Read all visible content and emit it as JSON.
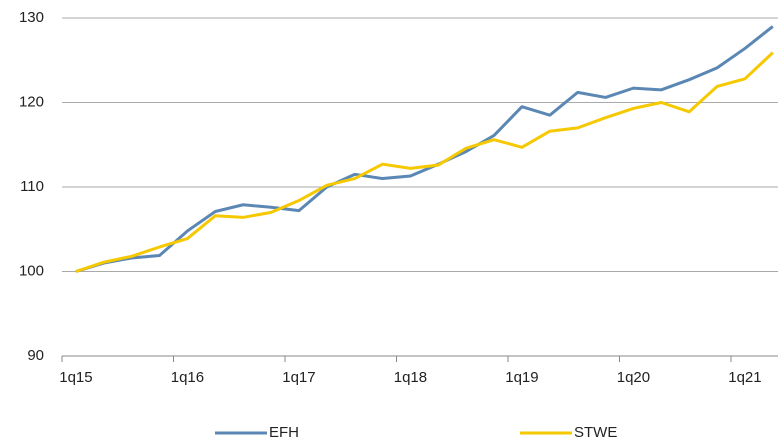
{
  "chart_data": {
    "type": "line",
    "categories": [
      "1q15",
      null,
      null,
      null,
      "1q16",
      null,
      null,
      null,
      "1q17",
      null,
      null,
      null,
      "1q18",
      null,
      null,
      null,
      "1q19",
      null,
      null,
      null,
      "1q20",
      null,
      null,
      null,
      "1q21",
      null
    ],
    "series": [
      {
        "name": "EFH",
        "color": "#5b87b4",
        "values": [
          100,
          101,
          101.6,
          101.9,
          104.8,
          107.1,
          107.9,
          107.6,
          107.2,
          110.0,
          111.5,
          111.0,
          111.3,
          112.7,
          114.2,
          116.1,
          119.5,
          118.5,
          121.2,
          120.6,
          121.7,
          121.5,
          122.7,
          124.1,
          126.4,
          129.0
        ]
      },
      {
        "name": "STWE",
        "color": "#f5c800",
        "values": [
          100,
          101.1,
          101.8,
          102.9,
          103.9,
          106.6,
          106.4,
          107.0,
          108.4,
          110.2,
          111.0,
          112.7,
          112.2,
          112.6,
          114.6,
          115.6,
          114.7,
          116.6,
          117.0,
          118.2,
          119.3,
          120.0,
          118.9,
          121.9,
          122.8,
          125.9
        ]
      }
    ],
    "ylim": [
      90,
      130
    ],
    "yticks": [
      90,
      100,
      110,
      120,
      130
    ],
    "grid": true,
    "legend": "bottom"
  }
}
